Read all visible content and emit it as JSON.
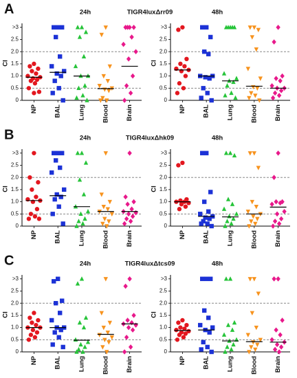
{
  "panels": [
    {
      "label": "A",
      "title": "TIGR4luxΔrr09"
    },
    {
      "label": "B",
      "title": "TIGR4luxΔhk09"
    },
    {
      "label": "C",
      "title": "TIGR4luxΔtcs09"
    }
  ],
  "chart_data": [
    {
      "type": "strip",
      "title": "24h",
      "y_label": "CI",
      "ylim": [
        0,
        3.05
      ],
      "yticks": [
        0,
        {
          "value": 0.5,
          "label": "0.5"
        },
        {
          "value": 1,
          "label": "1.0"
        },
        {
          "value": 1.5,
          "label": "1.5"
        },
        {
          "value": 2,
          "label": "2.0"
        },
        {
          "value": 2.5,
          "label": "2.5"
        },
        {
          "value": 3,
          "label": ">3"
        }
      ],
      "reference_lines": [
        0.5,
        2
      ],
      "series": [
        {
          "name": "NP",
          "color": "#e3171f",
          "marker": "circle",
          "values": [
            1.5,
            1.4,
            1.3,
            1.2,
            1.1,
            1.0,
            0.95,
            0.9,
            0.85,
            0.8,
            0.7,
            0.5,
            0.35,
            0.3
          ],
          "median": 0.95
        },
        {
          "name": "BAL",
          "color": "#1c32d6",
          "marker": "square",
          "values": [
            3,
            3,
            3,
            2.6,
            1.8,
            1.4,
            1.2,
            1.1,
            1.0,
            0.8,
            0.5,
            0.3,
            0
          ],
          "median": 1.15
        },
        {
          "name": "Lung",
          "color": "#27c43a",
          "marker": "triangle",
          "values": [
            3,
            3,
            2.8,
            2.6,
            1.8,
            1.4,
            1.0,
            1.0,
            0.6,
            0.5,
            0.2,
            0.1,
            0
          ],
          "median": 1.0
        },
        {
          "name": "Blood",
          "color": "#f7931e",
          "marker": "triangle-down",
          "values": [
            3,
            2.7,
            1.4,
            1.0,
            0.8,
            0.6,
            0.5,
            0.45,
            0.4,
            0.1,
            0,
            0
          ],
          "median": 0.48
        },
        {
          "name": "Brain",
          "color": "#e8198b",
          "marker": "diamond",
          "values": [
            3,
            3,
            3,
            3,
            2.6,
            2.3,
            2.0,
            1.7,
            1.0,
            0.6,
            0.3,
            0
          ],
          "median": 1.4
        }
      ]
    },
    {
      "type": "strip",
      "title": "48h",
      "y_label": "CI",
      "ylim": [
        0,
        3.05
      ],
      "yticks": [
        0,
        {
          "value": 0.5,
          "label": "0.5"
        },
        {
          "value": 1,
          "label": "1.0"
        },
        {
          "value": 1.5,
          "label": "1.5"
        },
        {
          "value": 2,
          "label": "2.0"
        },
        {
          "value": 2.5,
          "label": "2.5"
        },
        {
          "value": 3,
          "label": ">3"
        }
      ],
      "reference_lines": [
        0.5,
        2
      ],
      "series": [
        {
          "name": "NP",
          "color": "#e3171f",
          "marker": "circle",
          "values": [
            3,
            2.9,
            1.7,
            1.5,
            1.4,
            1.3,
            1.25,
            1.2,
            1.0,
            0.7,
            0.5,
            0.3
          ],
          "median": 1.25
        },
        {
          "name": "BAL",
          "color": "#1c32d6",
          "marker": "square",
          "values": [
            3,
            3,
            2.6,
            2.0,
            1.9,
            1.0,
            1.0,
            0.95,
            0.9,
            0.5,
            0.3,
            0.1,
            0
          ],
          "median": 1.0
        },
        {
          "name": "Lung",
          "color": "#27c43a",
          "marker": "triangle",
          "values": [
            3,
            3,
            3,
            3,
            3,
            1.1,
            0.9,
            0.8,
            0.75,
            0.6,
            0.3,
            0.2,
            0.1
          ],
          "median": 0.8
        },
        {
          "name": "Blood",
          "color": "#f7931e",
          "marker": "triangle-down",
          "values": [
            3,
            3,
            2.9,
            2.6,
            2.1,
            1.3,
            0.9,
            0.55,
            0.5,
            0.3,
            0.2,
            0.1,
            0
          ],
          "median": 0.58
        },
        {
          "name": "Brain",
          "color": "#e8198b",
          "marker": "diamond",
          "values": [
            3,
            2.4,
            1.0,
            0.9,
            0.8,
            0.6,
            0.5,
            0.5,
            0.4,
            0.3,
            0.2,
            0.1
          ],
          "median": 0.5
        }
      ]
    },
    {
      "type": "strip",
      "title": "24h",
      "y_label": "CI",
      "ylim": [
        0,
        3.05
      ],
      "yticks": [
        0,
        {
          "value": 0.5,
          "label": "0.5"
        },
        {
          "value": 1,
          "label": "1.0"
        },
        {
          "value": 1.5,
          "label": "1.5"
        },
        {
          "value": 2,
          "label": "2.0"
        },
        {
          "value": 2.5,
          "label": "2.5"
        },
        {
          "value": 3,
          "label": ">3"
        }
      ],
      "reference_lines": [
        0.5,
        2
      ],
      "series": [
        {
          "name": "NP",
          "color": "#e3171f",
          "marker": "circle",
          "values": [
            3,
            2.0,
            1.8,
            1.5,
            1.2,
            1.1,
            1.05,
            1.0,
            0.7,
            0.5,
            0.4,
            0.3,
            0.3
          ],
          "median": 1.05
        },
        {
          "name": "BAL",
          "color": "#1c32d6",
          "marker": "square",
          "values": [
            3,
            3,
            3,
            2.7,
            2.4,
            2.2,
            1.5,
            1.3,
            1.2,
            1.1,
            0.8,
            0.5,
            0.1
          ],
          "median": 1.25
        },
        {
          "name": "Lung",
          "color": "#27c43a",
          "marker": "triangle",
          "values": [
            3,
            3,
            2.6,
            1.9,
            1.3,
            0.8,
            0.6,
            0.5,
            0.3,
            0.2,
            0.1,
            0
          ],
          "median": 0.8
        },
        {
          "name": "Blood",
          "color": "#f7931e",
          "marker": "triangle-down",
          "values": [
            3,
            1.3,
            1.0,
            0.8,
            0.7,
            0.6,
            0.5,
            0.3,
            0.2,
            0.1,
            0
          ],
          "median": 0.6
        },
        {
          "name": "Brain",
          "color": "#e8198b",
          "marker": "diamond",
          "values": [
            3,
            1.2,
            1.0,
            0.9,
            0.7,
            0.6,
            0.55,
            0.5,
            0.4,
            0.3,
            0.2,
            0.1
          ],
          "median": 0.6
        }
      ]
    },
    {
      "type": "strip",
      "title": "48h",
      "y_label": "CI",
      "ylim": [
        0,
        3.05
      ],
      "yticks": [
        0,
        {
          "value": 0.5,
          "label": "0.5"
        },
        {
          "value": 1,
          "label": "1.0"
        },
        {
          "value": 1.5,
          "label": "1.5"
        },
        {
          "value": 2,
          "label": "2.0"
        },
        {
          "value": 2.5,
          "label": "2.5"
        },
        {
          "value": 3,
          "label": ">3"
        }
      ],
      "reference_lines": [
        0.5,
        2
      ],
      "series": [
        {
          "name": "NP",
          "color": "#e3171f",
          "marker": "circle",
          "values": [
            2.6,
            2.5,
            1.1,
            1.05,
            1.0,
            1.0,
            0.95,
            0.9,
            0.8,
            0.7
          ],
          "median": 1.0
        },
        {
          "name": "BAL",
          "color": "#1c32d6",
          "marker": "square",
          "values": [
            3,
            3,
            1.4,
            1.0,
            0.6,
            0.5,
            0.4,
            0.35,
            0.3,
            0.2,
            0.1,
            0.1,
            0
          ],
          "median": 0.4
        },
        {
          "name": "Lung",
          "color": "#27c43a",
          "marker": "triangle",
          "values": [
            3,
            3,
            2.9,
            1.1,
            0.9,
            0.7,
            0.5,
            0.4,
            0.3,
            0.2,
            0.1,
            0
          ],
          "median": 0.38
        },
        {
          "name": "Blood",
          "color": "#f7931e",
          "marker": "triangle-down",
          "values": [
            3,
            3,
            2.4,
            1.0,
            0.8,
            0.6,
            0.5,
            0.4,
            0.3,
            0.2,
            0.1,
            0
          ],
          "median": 0.5
        },
        {
          "name": "Brain",
          "color": "#e8198b",
          "marker": "diamond",
          "values": [
            3,
            2.0,
            1.0,
            1.0,
            0.95,
            0.9,
            0.6,
            0.5,
            0.3,
            0.2,
            0.1,
            0
          ],
          "median": 0.78
        }
      ]
    },
    {
      "type": "strip",
      "title": "24h",
      "y_label": "CI",
      "ylim": [
        0,
        3.05
      ],
      "yticks": [
        0,
        {
          "value": 0.5,
          "label": "0.5"
        },
        {
          "value": 1,
          "label": "1.0"
        },
        {
          "value": 1.5,
          "label": "1.5"
        },
        {
          "value": 2,
          "label": "2.0"
        },
        {
          "value": 2.5,
          "label": "2.5"
        },
        {
          "value": 3,
          "label": ">3"
        }
      ],
      "reference_lines": [
        0.5,
        2
      ],
      "series": [
        {
          "name": "NP",
          "color": "#e3171f",
          "marker": "circle",
          "values": [
            1.6,
            1.4,
            1.3,
            1.2,
            1.1,
            1.0,
            1.0,
            0.9,
            0.8,
            0.7,
            0.6,
            0.5
          ],
          "median": 1.0
        },
        {
          "name": "BAL",
          "color": "#1c32d6",
          "marker": "square",
          "values": [
            3,
            2.9,
            2.1,
            2.0,
            1.6,
            1.3,
            1.0,
            1.0,
            0.9,
            0.8,
            0.6,
            0.3,
            0.2
          ],
          "median": 1.0
        },
        {
          "name": "Lung",
          "color": "#27c43a",
          "marker": "triangle",
          "values": [
            3,
            2.8,
            1.4,
            1.2,
            1.0,
            0.5,
            0.4,
            0.3,
            0.2,
            0.1,
            0,
            0
          ],
          "median": 0.48
        },
        {
          "name": "Blood",
          "color": "#f7931e",
          "marker": "triangle-down",
          "values": [
            3,
            1.6,
            1.2,
            1.0,
            0.8,
            0.7,
            0.6,
            0.5,
            0.4,
            0.2,
            0
          ],
          "median": 0.72
        },
        {
          "name": "Brain",
          "color": "#e8198b",
          "marker": "diamond",
          "values": [
            3,
            2.7,
            1.5,
            1.3,
            1.2,
            1.15,
            1.1,
            1.0,
            0.9,
            0.6,
            0.2,
            0
          ],
          "median": 1.15
        }
      ]
    },
    {
      "type": "strip",
      "title": "48h",
      "y_label": "CI",
      "ylim": [
        0,
        3.05
      ],
      "yticks": [
        0,
        {
          "value": 0.5,
          "label": "0.5"
        },
        {
          "value": 1,
          "label": "1.0"
        },
        {
          "value": 1.5,
          "label": "1.5"
        },
        {
          "value": 2,
          "label": "2.0"
        },
        {
          "value": 2.5,
          "label": "2.5"
        },
        {
          "value": 3,
          "label": ">3"
        }
      ],
      "reference_lines": [
        0.5,
        2
      ],
      "series": [
        {
          "name": "NP",
          "color": "#e3171f",
          "marker": "circle",
          "values": [
            1.3,
            1.2,
            1.1,
            1.0,
            0.95,
            0.9,
            0.85,
            0.8,
            0.75,
            0.7,
            0.6,
            0.5
          ],
          "median": 0.88
        },
        {
          "name": "BAL",
          "color": "#1c32d6",
          "marker": "square",
          "values": [
            3,
            3,
            3,
            1.7,
            1.4,
            1.1,
            1.0,
            0.9,
            0.8,
            0.4,
            0.2,
            0.1,
            0
          ],
          "median": 0.9
        },
        {
          "name": "Lung",
          "color": "#27c43a",
          "marker": "triangle",
          "values": [
            3,
            3,
            1.2,
            1.1,
            0.9,
            0.7,
            0.5,
            0.45,
            0.3,
            0.2,
            0.1,
            0
          ],
          "median": 0.45
        },
        {
          "name": "Blood",
          "color": "#f7931e",
          "marker": "triangle-down",
          "values": [
            3,
            3,
            2.4,
            1.6,
            1.0,
            0.7,
            0.5,
            0.4,
            0.3,
            0.2,
            0.1,
            0
          ],
          "median": 0.42
        },
        {
          "name": "Brain",
          "color": "#e8198b",
          "marker": "diamond",
          "values": [
            3,
            3,
            1.3,
            0.9,
            0.7,
            0.5,
            0.4,
            0.3,
            0.2,
            0.1,
            0
          ],
          "median": 0.4
        }
      ]
    }
  ]
}
